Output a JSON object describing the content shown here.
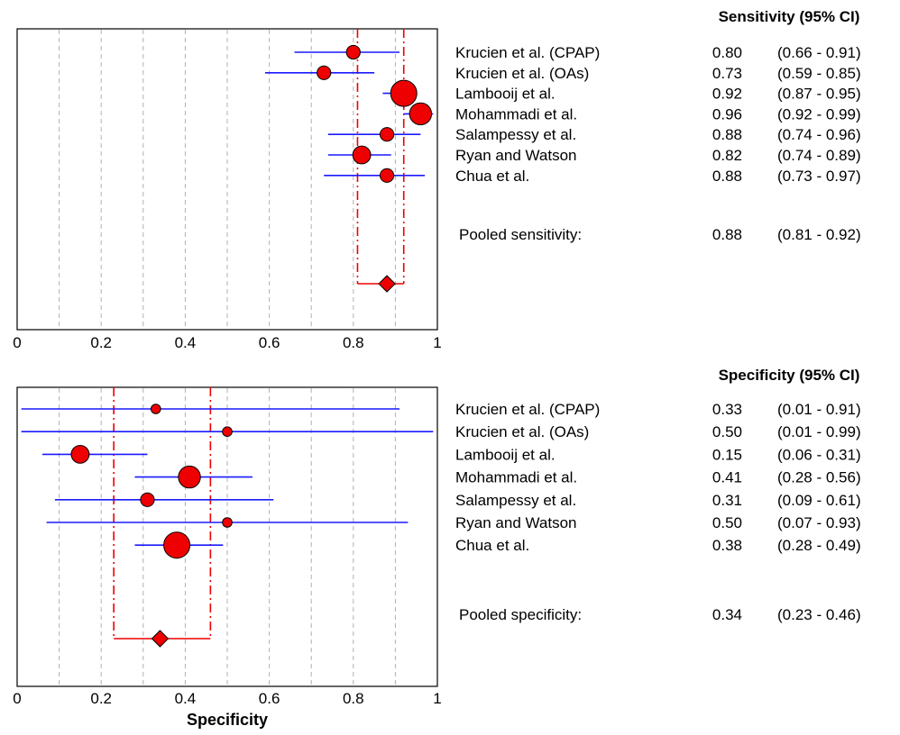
{
  "chart_data": [
    {
      "type": "forest",
      "header": "Sensitivity (95% CI)",
      "xlim": [
        0,
        1
      ],
      "tick_labels": [
        "0",
        "0.2",
        "0.4",
        "0.6",
        "0.8",
        "1"
      ],
      "grid": "vertical dashed",
      "xlabel": "",
      "studies": [
        {
          "name": "Krucien et al. (CPAP)",
          "value_label": "0.80",
          "ci_label": "(0.66 - 0.91)",
          "est": 0.8,
          "lo": 0.66,
          "hi": 0.91,
          "weight": 2
        },
        {
          "name": "Krucien et al. (OAs)",
          "value_label": "0.73",
          "ci_label": "(0.59 - 0.85)",
          "est": 0.73,
          "lo": 0.59,
          "hi": 0.85,
          "weight": 2
        },
        {
          "name": "Lambooij et al.",
          "value_label": "0.92",
          "ci_label": "(0.87 - 0.95)",
          "est": 0.92,
          "lo": 0.87,
          "hi": 0.95,
          "weight": 5
        },
        {
          "name": "Mohammadi et al.",
          "value_label": "0.96",
          "ci_label": "(0.92 - 0.99)",
          "est": 0.96,
          "lo": 0.92,
          "hi": 0.99,
          "weight": 4
        },
        {
          "name": "Salampessy et al.",
          "value_label": "0.88",
          "ci_label": "(0.74 - 0.96)",
          "est": 0.88,
          "lo": 0.74,
          "hi": 0.96,
          "weight": 2
        },
        {
          "name": "Ryan and Watson",
          "value_label": "0.82",
          "ci_label": "(0.74 - 0.89)",
          "est": 0.82,
          "lo": 0.74,
          "hi": 0.89,
          "weight": 3
        },
        {
          "name": "Chua et al.",
          "value_label": "0.88",
          "ci_label": "(0.73 - 0.97)",
          "est": 0.88,
          "lo": 0.73,
          "hi": 0.97,
          "weight": 2
        }
      ],
      "pooled": {
        "label": "Pooled sensitivity:",
        "value_label": "0.88",
        "ci_label": "(0.81 - 0.92)",
        "est": 0.88,
        "lo": 0.81,
        "hi": 0.92
      }
    },
    {
      "type": "forest",
      "header": "Specificity (95% CI)",
      "xlim": [
        0,
        1
      ],
      "tick_labels": [
        "0",
        "0.2",
        "0.4",
        "0.6",
        "0.8",
        "1"
      ],
      "grid": "vertical dashed",
      "xlabel": "Specificity",
      "studies": [
        {
          "name": "Krucien et al. (CPAP)",
          "value_label": "0.33",
          "ci_label": "(0.01 - 0.91)",
          "est": 0.33,
          "lo": 0.01,
          "hi": 0.91,
          "weight": 1
        },
        {
          "name": "Krucien et al. (OAs)",
          "value_label": "0.50",
          "ci_label": "(0.01 - 0.99)",
          "est": 0.5,
          "lo": 0.01,
          "hi": 0.99,
          "weight": 1
        },
        {
          "name": "Lambooij et al.",
          "value_label": "0.15",
          "ci_label": "(0.06 - 0.31)",
          "est": 0.15,
          "lo": 0.06,
          "hi": 0.31,
          "weight": 3
        },
        {
          "name": "Mohammadi et al.",
          "value_label": "0.41",
          "ci_label": "(0.28 - 0.56)",
          "est": 0.41,
          "lo": 0.28,
          "hi": 0.56,
          "weight": 4
        },
        {
          "name": "Salampessy et al.",
          "value_label": "0.31",
          "ci_label": "(0.09 - 0.61)",
          "est": 0.31,
          "lo": 0.09,
          "hi": 0.61,
          "weight": 2
        },
        {
          "name": "Ryan and Watson",
          "value_label": "0.50",
          "ci_label": "(0.07 - 0.93)",
          "est": 0.5,
          "lo": 0.07,
          "hi": 0.93,
          "weight": 1
        },
        {
          "name": "Chua et al.",
          "value_label": "0.38",
          "ci_label": "(0.28 - 0.49)",
          "est": 0.38,
          "lo": 0.28,
          "hi": 0.49,
          "weight": 5
        }
      ],
      "pooled": {
        "label": "Pooled specificity:",
        "value_label": "0.34",
        "ci_label": "(0.23 - 0.46)",
        "est": 0.34,
        "lo": 0.23,
        "hi": 0.46
      }
    }
  ],
  "colors": {
    "point": "#ee0000",
    "ci": "#1a1aff",
    "pooled": "#ee0000",
    "grid": "#b0b0b0"
  }
}
